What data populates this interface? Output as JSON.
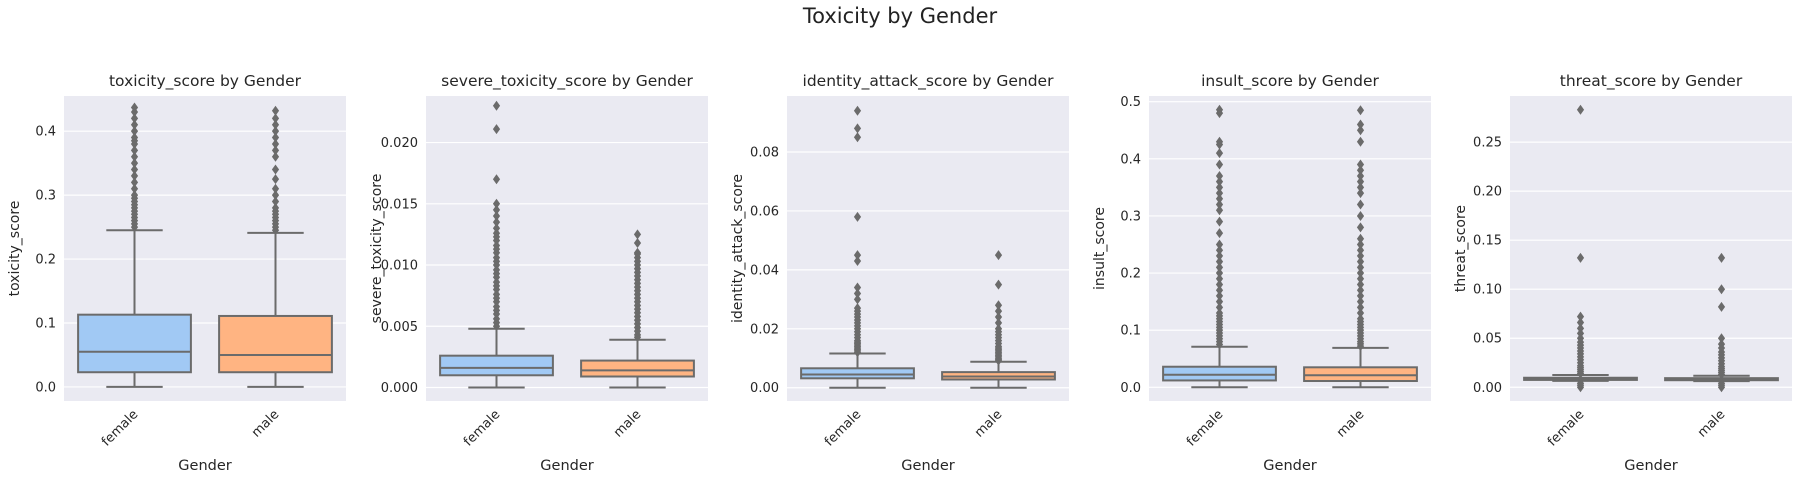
{
  "figure": {
    "suptitle": "Toxicity by Gender"
  },
  "chart_data": [
    {
      "type": "box",
      "title": "toxicity_score by Gender",
      "xlabel": "Gender",
      "ylabel": "toxicity_score",
      "categories": [
        "female",
        "male"
      ],
      "ylim": [
        -0.022,
        0.455
      ],
      "yticks": [
        0.0,
        0.1,
        0.2,
        0.3,
        0.4
      ],
      "ytick_labels": [
        "0.0",
        "0.1",
        "0.2",
        "0.3",
        "0.4"
      ],
      "boxes": [
        {
          "min": 0.0,
          "q1": 0.023,
          "median": 0.055,
          "q3": 0.113,
          "max": 0.245,
          "outliers": [
            0.25,
            0.255,
            0.26,
            0.265,
            0.27,
            0.275,
            0.28,
            0.285,
            0.29,
            0.295,
            0.3,
            0.31,
            0.32,
            0.33,
            0.34,
            0.35,
            0.36,
            0.37,
            0.38,
            0.385,
            0.39,
            0.4,
            0.41,
            0.42,
            0.43,
            0.437
          ]
        },
        {
          "min": 0.0,
          "q1": 0.023,
          "median": 0.05,
          "q3": 0.111,
          "max": 0.241,
          "outliers": [
            0.245,
            0.25,
            0.255,
            0.26,
            0.265,
            0.27,
            0.275,
            0.28,
            0.29,
            0.3,
            0.31,
            0.325,
            0.34,
            0.36,
            0.37,
            0.38,
            0.39,
            0.4,
            0.41,
            0.42,
            0.432
          ]
        }
      ]
    },
    {
      "type": "box",
      "title": "severe_toxicity_score by Gender",
      "xlabel": "Gender",
      "ylabel": "severe_toxicity_score",
      "categories": [
        "female",
        "male"
      ],
      "ylim": [
        -0.0011,
        0.0238
      ],
      "yticks": [
        0.0,
        0.005,
        0.01,
        0.015,
        0.02
      ],
      "ytick_labels": [
        "0.000",
        "0.005",
        "0.010",
        "0.015",
        "0.020"
      ],
      "boxes": [
        {
          "min": 0.0,
          "q1": 0.001,
          "median": 0.0016,
          "q3": 0.0026,
          "max": 0.0048,
          "outliers": [
            0.005,
            0.0053,
            0.0056,
            0.006,
            0.0063,
            0.0066,
            0.007,
            0.0073,
            0.0076,
            0.008,
            0.0083,
            0.0086,
            0.009,
            0.0093,
            0.0096,
            0.01,
            0.0103,
            0.0106,
            0.011,
            0.0113,
            0.0116,
            0.012,
            0.0123,
            0.0126,
            0.013,
            0.0135,
            0.014,
            0.0145,
            0.015,
            0.017,
            0.0211,
            0.023
          ]
        },
        {
          "min": 0.0,
          "q1": 0.0009,
          "median": 0.0014,
          "q3": 0.0022,
          "max": 0.0039,
          "outliers": [
            0.0041,
            0.0043,
            0.0046,
            0.0049,
            0.0052,
            0.0055,
            0.0058,
            0.0061,
            0.0064,
            0.0067,
            0.007,
            0.0073,
            0.0076,
            0.0079,
            0.0082,
            0.0085,
            0.0088,
            0.0091,
            0.0094,
            0.0097,
            0.01,
            0.0103,
            0.0106,
            0.0109,
            0.011,
            0.0118,
            0.0125
          ]
        }
      ]
    },
    {
      "type": "box",
      "title": "identity_attack_score by Gender",
      "xlabel": "Gender",
      "ylabel": "identity_attack_score",
      "categories": [
        "female",
        "male"
      ],
      "ylim": [
        -0.0045,
        0.099
      ],
      "yticks": [
        0.0,
        0.02,
        0.04,
        0.06,
        0.08
      ],
      "ytick_labels": [
        "0.00",
        "0.02",
        "0.04",
        "0.06",
        "0.08"
      ],
      "boxes": [
        {
          "min": 0.0,
          "q1": 0.0032,
          "median": 0.0045,
          "q3": 0.0066,
          "max": 0.0116,
          "outliers": [
            0.012,
            0.0125,
            0.013,
            0.0135,
            0.014,
            0.0145,
            0.015,
            0.0155,
            0.016,
            0.017,
            0.018,
            0.019,
            0.02,
            0.021,
            0.022,
            0.023,
            0.024,
            0.025,
            0.026,
            0.027,
            0.03,
            0.032,
            0.034,
            0.043,
            0.045,
            0.058,
            0.085,
            0.088,
            0.094
          ]
        },
        {
          "min": 0.0,
          "q1": 0.0028,
          "median": 0.0038,
          "q3": 0.0053,
          "max": 0.0088,
          "outliers": [
            0.0092,
            0.0096,
            0.01,
            0.0105,
            0.011,
            0.0115,
            0.012,
            0.0125,
            0.013,
            0.0135,
            0.014,
            0.015,
            0.016,
            0.017,
            0.018,
            0.019,
            0.02,
            0.022,
            0.024,
            0.026,
            0.028,
            0.035,
            0.045
          ]
        }
      ]
    },
    {
      "type": "box",
      "title": "insult_score by Gender",
      "xlabel": "Gender",
      "ylabel": "insult_score",
      "categories": [
        "female",
        "male"
      ],
      "ylim": [
        -0.024,
        0.51
      ],
      "yticks": [
        0.0,
        0.1,
        0.2,
        0.3,
        0.4,
        0.5
      ],
      "ytick_labels": [
        "0.0",
        "0.1",
        "0.2",
        "0.3",
        "0.4",
        "0.5"
      ],
      "boxes": [
        {
          "min": 0.0,
          "q1": 0.012,
          "median": 0.022,
          "q3": 0.036,
          "max": 0.071,
          "outliers": [
            0.075,
            0.08,
            0.085,
            0.09,
            0.095,
            0.1,
            0.105,
            0.11,
            0.115,
            0.12,
            0.125,
            0.13,
            0.14,
            0.15,
            0.16,
            0.17,
            0.18,
            0.19,
            0.2,
            0.21,
            0.22,
            0.23,
            0.24,
            0.25,
            0.27,
            0.29,
            0.31,
            0.32,
            0.33,
            0.34,
            0.35,
            0.36,
            0.37,
            0.39,
            0.41,
            0.425,
            0.43,
            0.48,
            0.486
          ]
        },
        {
          "min": 0.0,
          "q1": 0.011,
          "median": 0.021,
          "q3": 0.035,
          "max": 0.069,
          "outliers": [
            0.072,
            0.076,
            0.08,
            0.085,
            0.09,
            0.095,
            0.1,
            0.105,
            0.11,
            0.115,
            0.12,
            0.13,
            0.14,
            0.15,
            0.16,
            0.17,
            0.18,
            0.19,
            0.2,
            0.21,
            0.22,
            0.23,
            0.24,
            0.25,
            0.26,
            0.28,
            0.3,
            0.32,
            0.34,
            0.35,
            0.36,
            0.37,
            0.38,
            0.39,
            0.43,
            0.45,
            0.46,
            0.485
          ]
        }
      ]
    },
    {
      "type": "box",
      "title": "threat_score by Gender",
      "xlabel": "Gender",
      "ylabel": "threat_score",
      "categories": [
        "female",
        "male"
      ],
      "ylim": [
        -0.014,
        0.297
      ],
      "yticks": [
        0.0,
        0.05,
        0.1,
        0.15,
        0.2,
        0.25
      ],
      "ytick_labels": [
        "0.00",
        "0.05",
        "0.10",
        "0.15",
        "0.20",
        "0.25"
      ],
      "boxes": [
        {
          "min": 0.0065,
          "q1": 0.0075,
          "median": 0.0085,
          "q3": 0.0097,
          "max": 0.0125,
          "outliers": [
            0.0,
            0.002,
            0.004,
            0.014,
            0.016,
            0.018,
            0.02,
            0.022,
            0.025,
            0.028,
            0.031,
            0.034,
            0.037,
            0.04,
            0.043,
            0.046,
            0.05,
            0.055,
            0.06,
            0.066,
            0.072,
            0.132,
            0.283
          ]
        },
        {
          "min": 0.0063,
          "q1": 0.0072,
          "median": 0.0081,
          "q3": 0.0093,
          "max": 0.0118,
          "outliers": [
            0.0,
            0.002,
            0.004,
            0.013,
            0.015,
            0.017,
            0.019,
            0.021,
            0.024,
            0.027,
            0.03,
            0.033,
            0.036,
            0.04,
            0.044,
            0.05,
            0.082,
            0.1,
            0.132
          ]
        }
      ]
    }
  ],
  "style": {
    "axes_bg": "#eaeaf2",
    "grid": "#ffffff",
    "line": "#6b6b6b",
    "text": "#262626",
    "box_colors": [
      "#a1c9f4",
      "#ffb482"
    ]
  }
}
